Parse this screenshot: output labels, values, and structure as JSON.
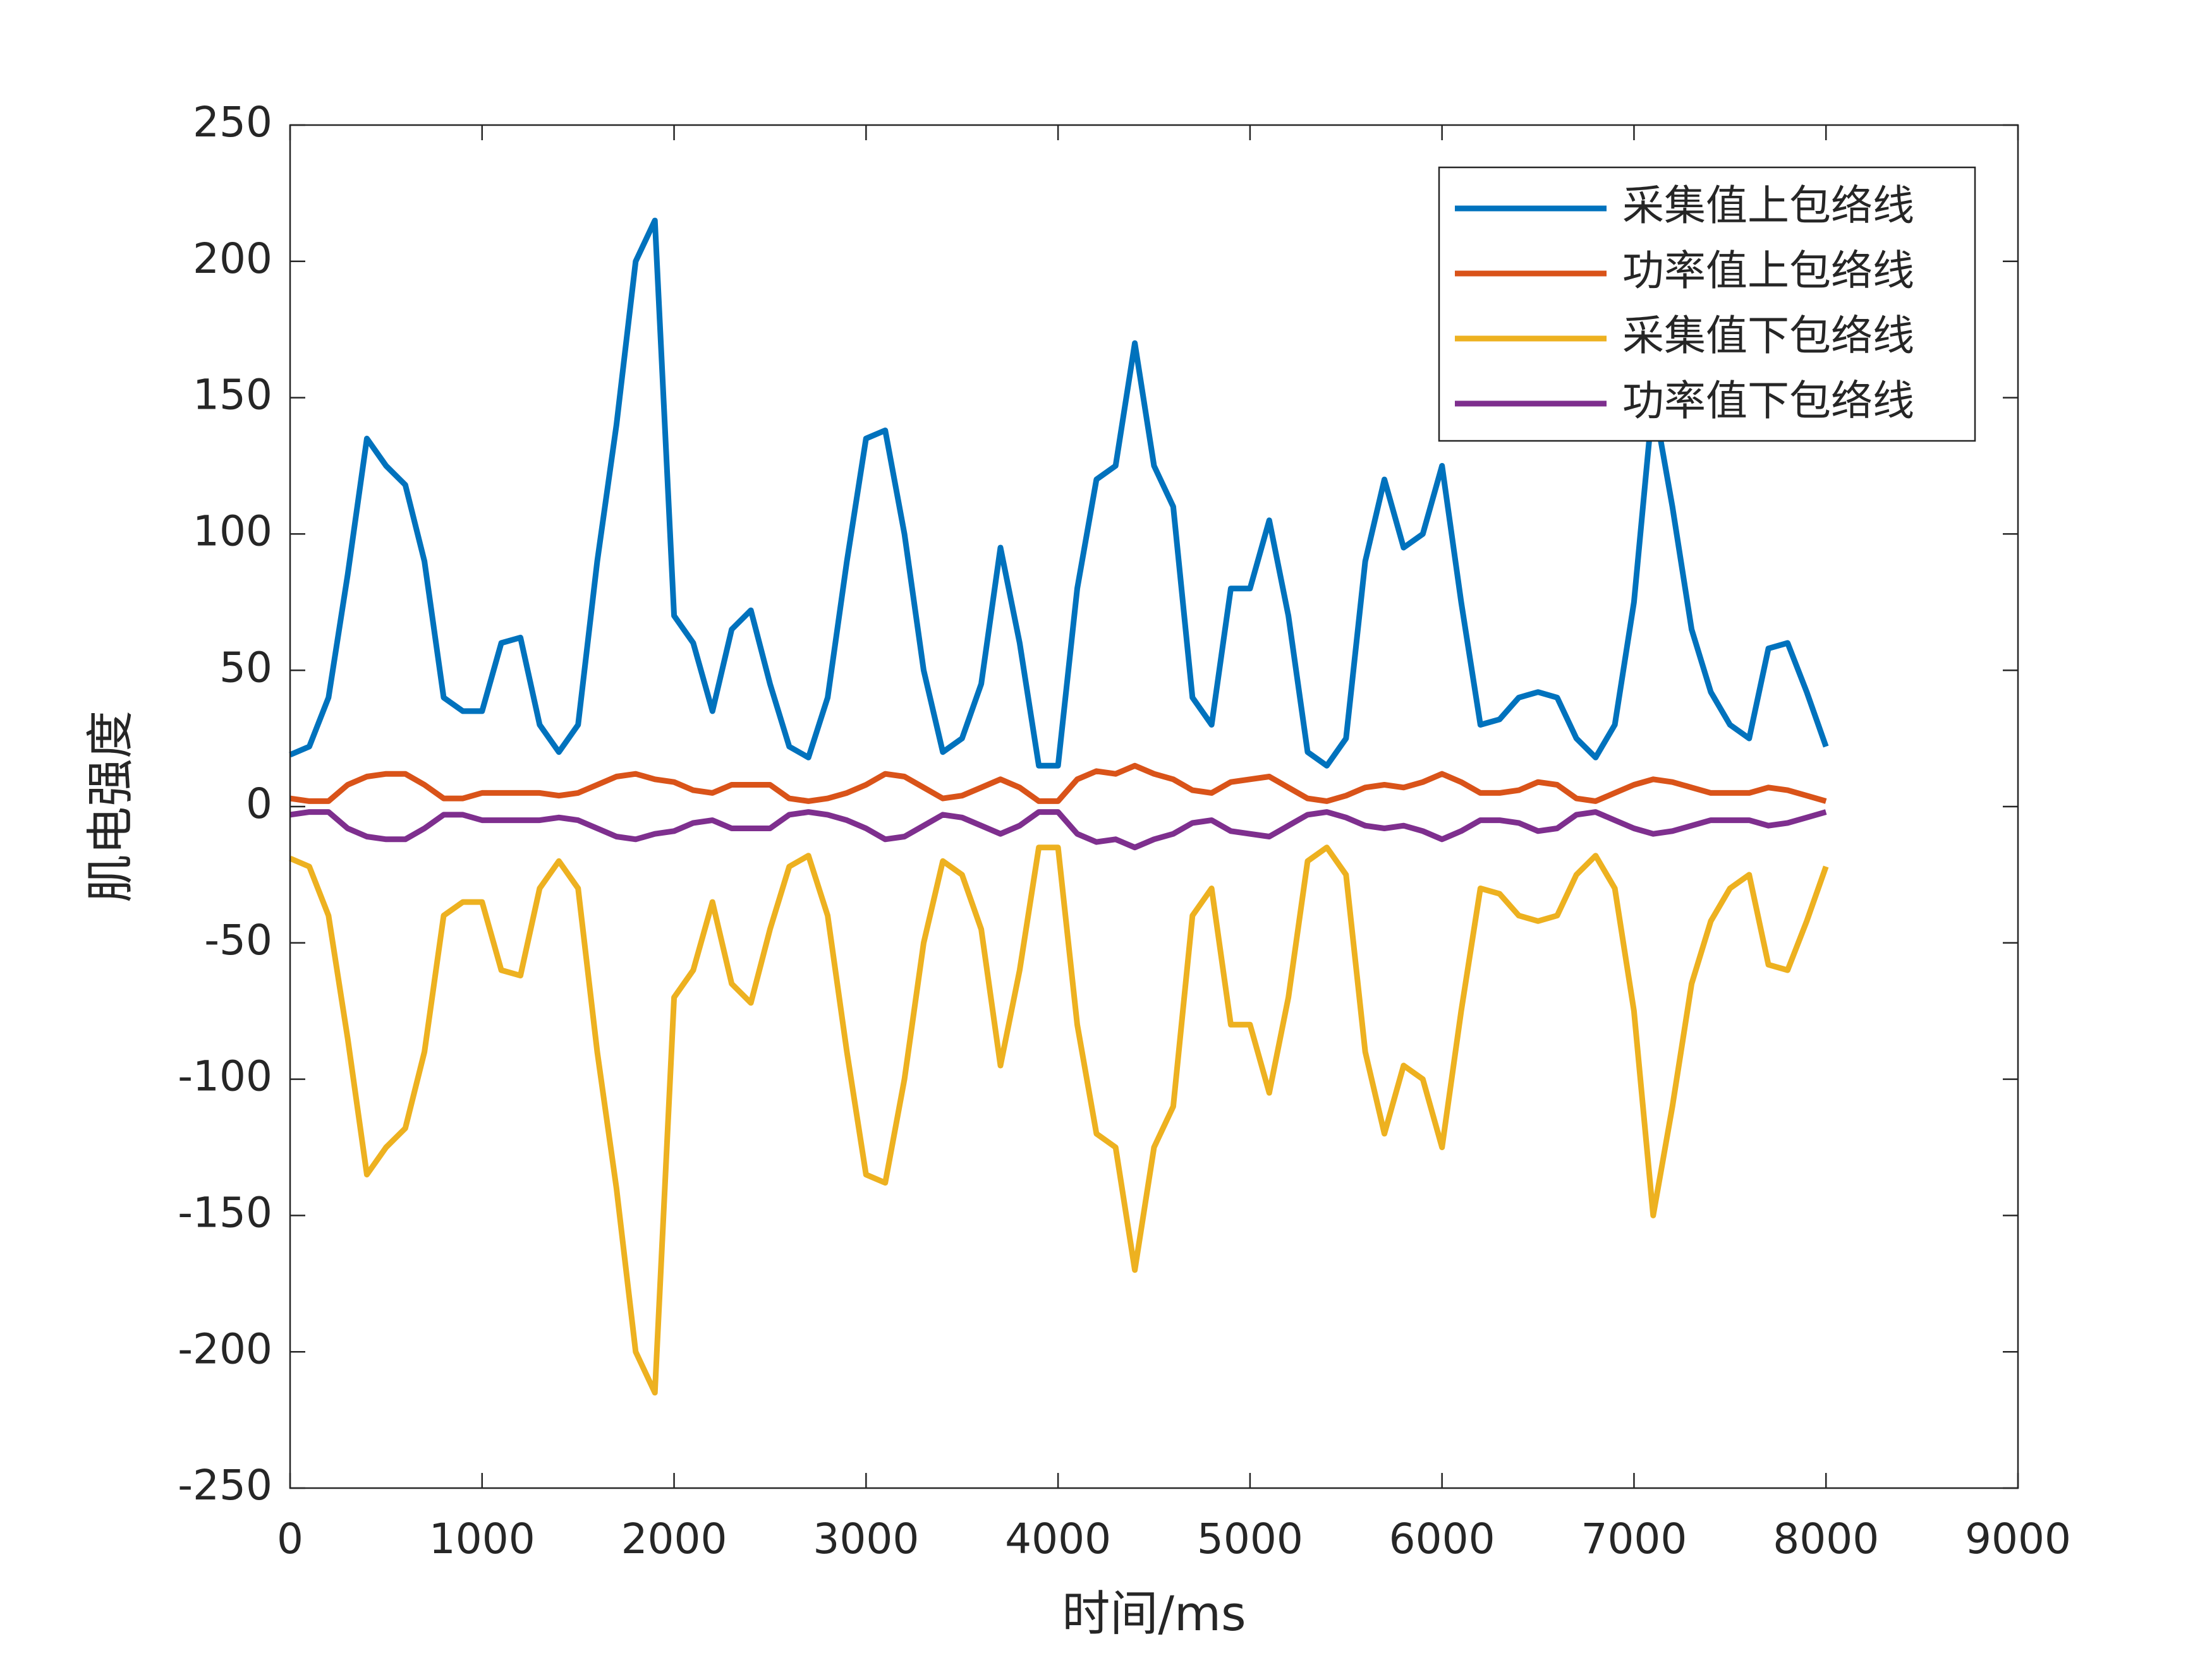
{
  "chart_data": {
    "type": "line",
    "xlabel": "时间/ms",
    "ylabel": "肌电强度",
    "x": [
      0,
      100,
      200,
      300,
      400,
      500,
      600,
      700,
      800,
      900,
      1000,
      1100,
      1200,
      1300,
      1400,
      1500,
      1600,
      1700,
      1800,
      1900,
      2000,
      2100,
      2200,
      2300,
      2400,
      2500,
      2600,
      2700,
      2800,
      2900,
      3000,
      3100,
      3200,
      3300,
      3400,
      3500,
      3600,
      3700,
      3800,
      3900,
      4000,
      4100,
      4200,
      4300,
      4400,
      4500,
      4600,
      4700,
      4800,
      4900,
      5000,
      5100,
      5200,
      5300,
      5400,
      5500,
      5600,
      5700,
      5800,
      5900,
      6000,
      6100,
      6200,
      6300,
      6400,
      6500,
      6600,
      6700,
      6800,
      6900,
      7000,
      7100,
      7200,
      7300,
      7400,
      7500,
      7600,
      7700,
      7800,
      7900,
      8000
    ],
    "series": [
      {
        "name": "采集值上包络线",
        "color": "#0072bd",
        "values": [
          19,
          22,
          40,
          85,
          135,
          125,
          118,
          90,
          40,
          35,
          35,
          60,
          62,
          30,
          20,
          30,
          90,
          140,
          200,
          215,
          70,
          60,
          35,
          65,
          72,
          45,
          22,
          18,
          40,
          90,
          135,
          138,
          100,
          50,
          20,
          25,
          45,
          95,
          60,
          15,
          15,
          80,
          120,
          125,
          170,
          125,
          110,
          40,
          30,
          80,
          80,
          105,
          70,
          20,
          15,
          25,
          90,
          120,
          95,
          100,
          125,
          75,
          30,
          32,
          40,
          42,
          40,
          25,
          18,
          30,
          75,
          150,
          110,
          65,
          42,
          30,
          25,
          58,
          60,
          42,
          22
        ]
      },
      {
        "name": "功率值上包络线",
        "color": "#d95319",
        "values": [
          3,
          2,
          2,
          8,
          11,
          12,
          12,
          8,
          3,
          3,
          5,
          5,
          5,
          5,
          4,
          5,
          8,
          11,
          12,
          10,
          9,
          6,
          5,
          8,
          8,
          8,
          3,
          2,
          3,
          5,
          8,
          12,
          11,
          7,
          3,
          4,
          7,
          10,
          7,
          2,
          2,
          10,
          13,
          12,
          15,
          12,
          10,
          6,
          5,
          9,
          10,
          11,
          7,
          3,
          2,
          4,
          7,
          8,
          7,
          9,
          12,
          9,
          5,
          5,
          6,
          9,
          8,
          3,
          2,
          5,
          8,
          10,
          9,
          7,
          5,
          5,
          5,
          7,
          6,
          4,
          2
        ]
      },
      {
        "name": "采集值下包络线",
        "color": "#edb120",
        "values": [
          -19,
          -22,
          -40,
          -85,
          -135,
          -125,
          -118,
          -90,
          -40,
          -35,
          -35,
          -60,
          -62,
          -30,
          -20,
          -30,
          -90,
          -140,
          -200,
          -215,
          -70,
          -60,
          -35,
          -65,
          -72,
          -45,
          -22,
          -18,
          -40,
          -90,
          -135,
          -138,
          -100,
          -50,
          -20,
          -25,
          -45,
          -95,
          -60,
          -15,
          -15,
          -80,
          -120,
          -125,
          -170,
          -125,
          -110,
          -40,
          -30,
          -80,
          -80,
          -105,
          -70,
          -20,
          -15,
          -25,
          -90,
          -120,
          -95,
          -100,
          -125,
          -75,
          -30,
          -32,
          -40,
          -42,
          -40,
          -25,
          -18,
          -30,
          -75,
          -150,
          -110,
          -65,
          -42,
          -30,
          -25,
          -58,
          -60,
          -42,
          -22
        ]
      },
      {
        "name": "功率值下包络线",
        "color": "#7e2f8e",
        "values": [
          -3,
          -2,
          -2,
          -8,
          -11,
          -12,
          -12,
          -8,
          -3,
          -3,
          -5,
          -5,
          -5,
          -5,
          -4,
          -5,
          -8,
          -11,
          -12,
          -10,
          -9,
          -6,
          -5,
          -8,
          -8,
          -8,
          -3,
          -2,
          -3,
          -5,
          -8,
          -12,
          -11,
          -7,
          -3,
          -4,
          -7,
          -10,
          -7,
          -2,
          -2,
          -10,
          -13,
          -12,
          -15,
          -12,
          -10,
          -6,
          -5,
          -9,
          -10,
          -11,
          -7,
          -3,
          -2,
          -4,
          -7,
          -8,
          -7,
          -9,
          -12,
          -9,
          -5,
          -5,
          -6,
          -9,
          -8,
          -3,
          -2,
          -5,
          -8,
          -10,
          -9,
          -7,
          -5,
          -5,
          -5,
          -7,
          -6,
          -4,
          -2
        ]
      }
    ],
    "xlim": [
      0,
      9000
    ],
    "xticks": [
      0,
      1000,
      2000,
      3000,
      4000,
      5000,
      6000,
      7000,
      8000,
      9000
    ],
    "ylim": [
      -250,
      250
    ],
    "yticks": [
      -250,
      -200,
      -150,
      -100,
      -50,
      0,
      50,
      100,
      150,
      200,
      250
    ],
    "legend": "upper right"
  }
}
